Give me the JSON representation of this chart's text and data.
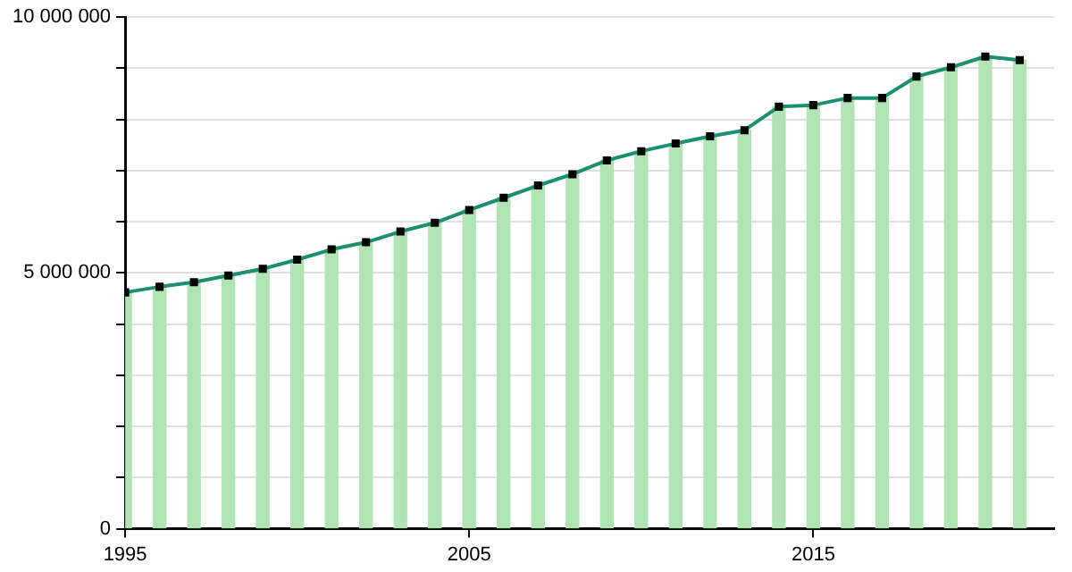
{
  "chart_data": {
    "type": "bar",
    "x": [
      1995,
      1996,
      1997,
      1998,
      1999,
      2000,
      2001,
      2002,
      2003,
      2004,
      2005,
      2006,
      2007,
      2008,
      2009,
      2010,
      2011,
      2012,
      2013,
      2014,
      2015,
      2016,
      2017,
      2018,
      2019,
      2020,
      2021
    ],
    "series": [
      {
        "color": "#b0e4b4",
        "values": [
          4620000,
          4730000,
          4820000,
          4950000,
          5080000,
          5260000,
          5460000,
          5600000,
          5810000,
          5980000,
          6230000,
          6470000,
          6710000,
          6930000,
          7200000,
          7380000,
          7530000,
          7670000,
          7790000,
          8250000,
          8280000,
          8420000,
          8420000,
          8840000,
          9020000,
          9230000,
          9160000
        ]
      },
      {
        "type": "line",
        "color": "#1b8f6e",
        "marker": "none",
        "values": [
          4620000,
          4730000,
          4820000,
          4950000,
          5080000,
          5260000,
          5460000,
          5600000,
          5810000,
          5980000,
          6230000,
          6470000,
          6710000,
          6930000,
          7200000,
          7380000,
          7530000,
          7670000,
          7790000,
          8250000,
          8280000,
          8420000,
          8420000,
          8840000,
          9020000,
          9230000,
          9160000
        ]
      },
      {
        "type": "scatter",
        "color": "#000000",
        "marker": "square",
        "values": [
          4620000,
          4730000,
          4820000,
          4950000,
          5080000,
          5260000,
          5460000,
          5600000,
          5810000,
          5980000,
          6230000,
          6470000,
          6710000,
          6930000,
          7200000,
          7380000,
          7530000,
          7670000,
          7790000,
          8250000,
          8280000,
          8420000,
          8420000,
          8840000,
          9020000,
          9230000,
          9160000
        ]
      }
    ],
    "xlim": [
      1995,
      2022
    ],
    "xticks": [
      1995,
      2005,
      2015
    ],
    "ylim": [
      0,
      10000000
    ],
    "yticks": [
      0,
      {
        "value": 1000000,
        "label": null
      },
      {
        "value": 2000000,
        "label": null
      },
      {
        "value": 3000000,
        "label": null
      },
      {
        "value": 4000000,
        "label": null
      },
      {
        "value": 5000000,
        "label": "5 000 000"
      },
      {
        "value": 6000000,
        "label": null
      },
      {
        "value": 7000000,
        "label": null
      },
      {
        "value": 8000000,
        "label": null
      },
      {
        "value": 9000000,
        "label": null
      },
      {
        "value": 10000000,
        "label": "10 000 000"
      }
    ],
    "grid": "y",
    "legend": false
  }
}
